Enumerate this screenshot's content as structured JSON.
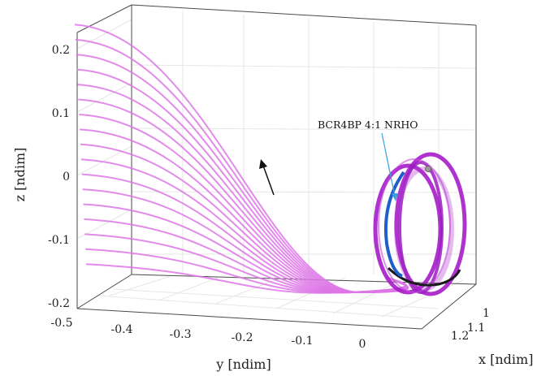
{
  "chart_data": {
    "type": "line",
    "view": "3d",
    "xlabel": "x [ndim]",
    "ylabel": "y [ndim]",
    "zlabel": "z [ndim]",
    "x_ticks": [
      "1",
      "1.1",
      "1.2"
    ],
    "y_ticks": [
      "-0.5",
      "-0.4",
      "-0.3",
      "-0.2",
      "-0.1",
      "0"
    ],
    "z_ticks": [
      "0.2",
      "0.1",
      "0",
      "-0.1",
      "-0.2"
    ],
    "zlim": [
      -0.21,
      0.23
    ],
    "ylim": [
      -0.5,
      0.05
    ],
    "grid": true,
    "annotation": "BCR4BP 4:1 NRHO",
    "series": [
      {
        "role": "transfer-family",
        "count": 17,
        "start_y": -0.48,
        "start_z_range": [
          -0.14,
          0.22
        ],
        "color": "#dd77e6"
      },
      {
        "role": "arrival-orbits",
        "color": "#a61bc9"
      },
      {
        "role": "nrho",
        "color": "#1f5fc9"
      }
    ],
    "colors": {
      "family": "#dd77e6",
      "orbit": "#a61bc9",
      "nrho": "#1f5fc9",
      "annotation_line": "#3aa0e0",
      "axis": "#444444",
      "grid": "#e3e3e3"
    }
  }
}
